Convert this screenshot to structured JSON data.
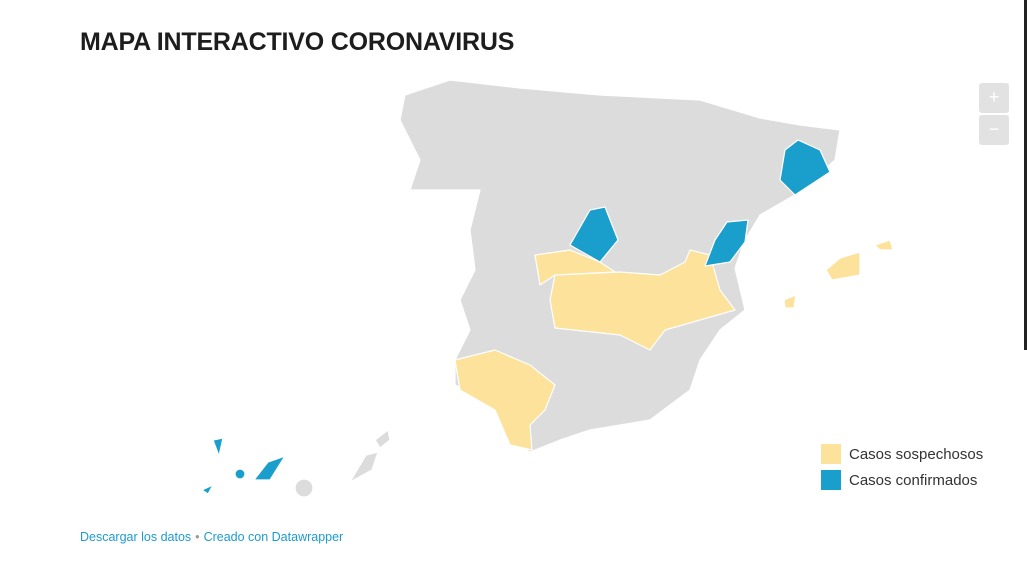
{
  "title": "MAPA INTERACTIVO CORONAVIRUS",
  "zoom": {
    "in_label": "+",
    "out_label": "−"
  },
  "legend": [
    {
      "label": "Casos sospechosos",
      "color": "#fde29b"
    },
    {
      "label": "Casos confirmados",
      "color": "#1a9fcc"
    }
  ],
  "colors": {
    "no_data": "#dcdcdc"
  },
  "footer": {
    "download": "Descargar los datos",
    "separator": "•",
    "created": "Creado con Datawrapper"
  }
}
